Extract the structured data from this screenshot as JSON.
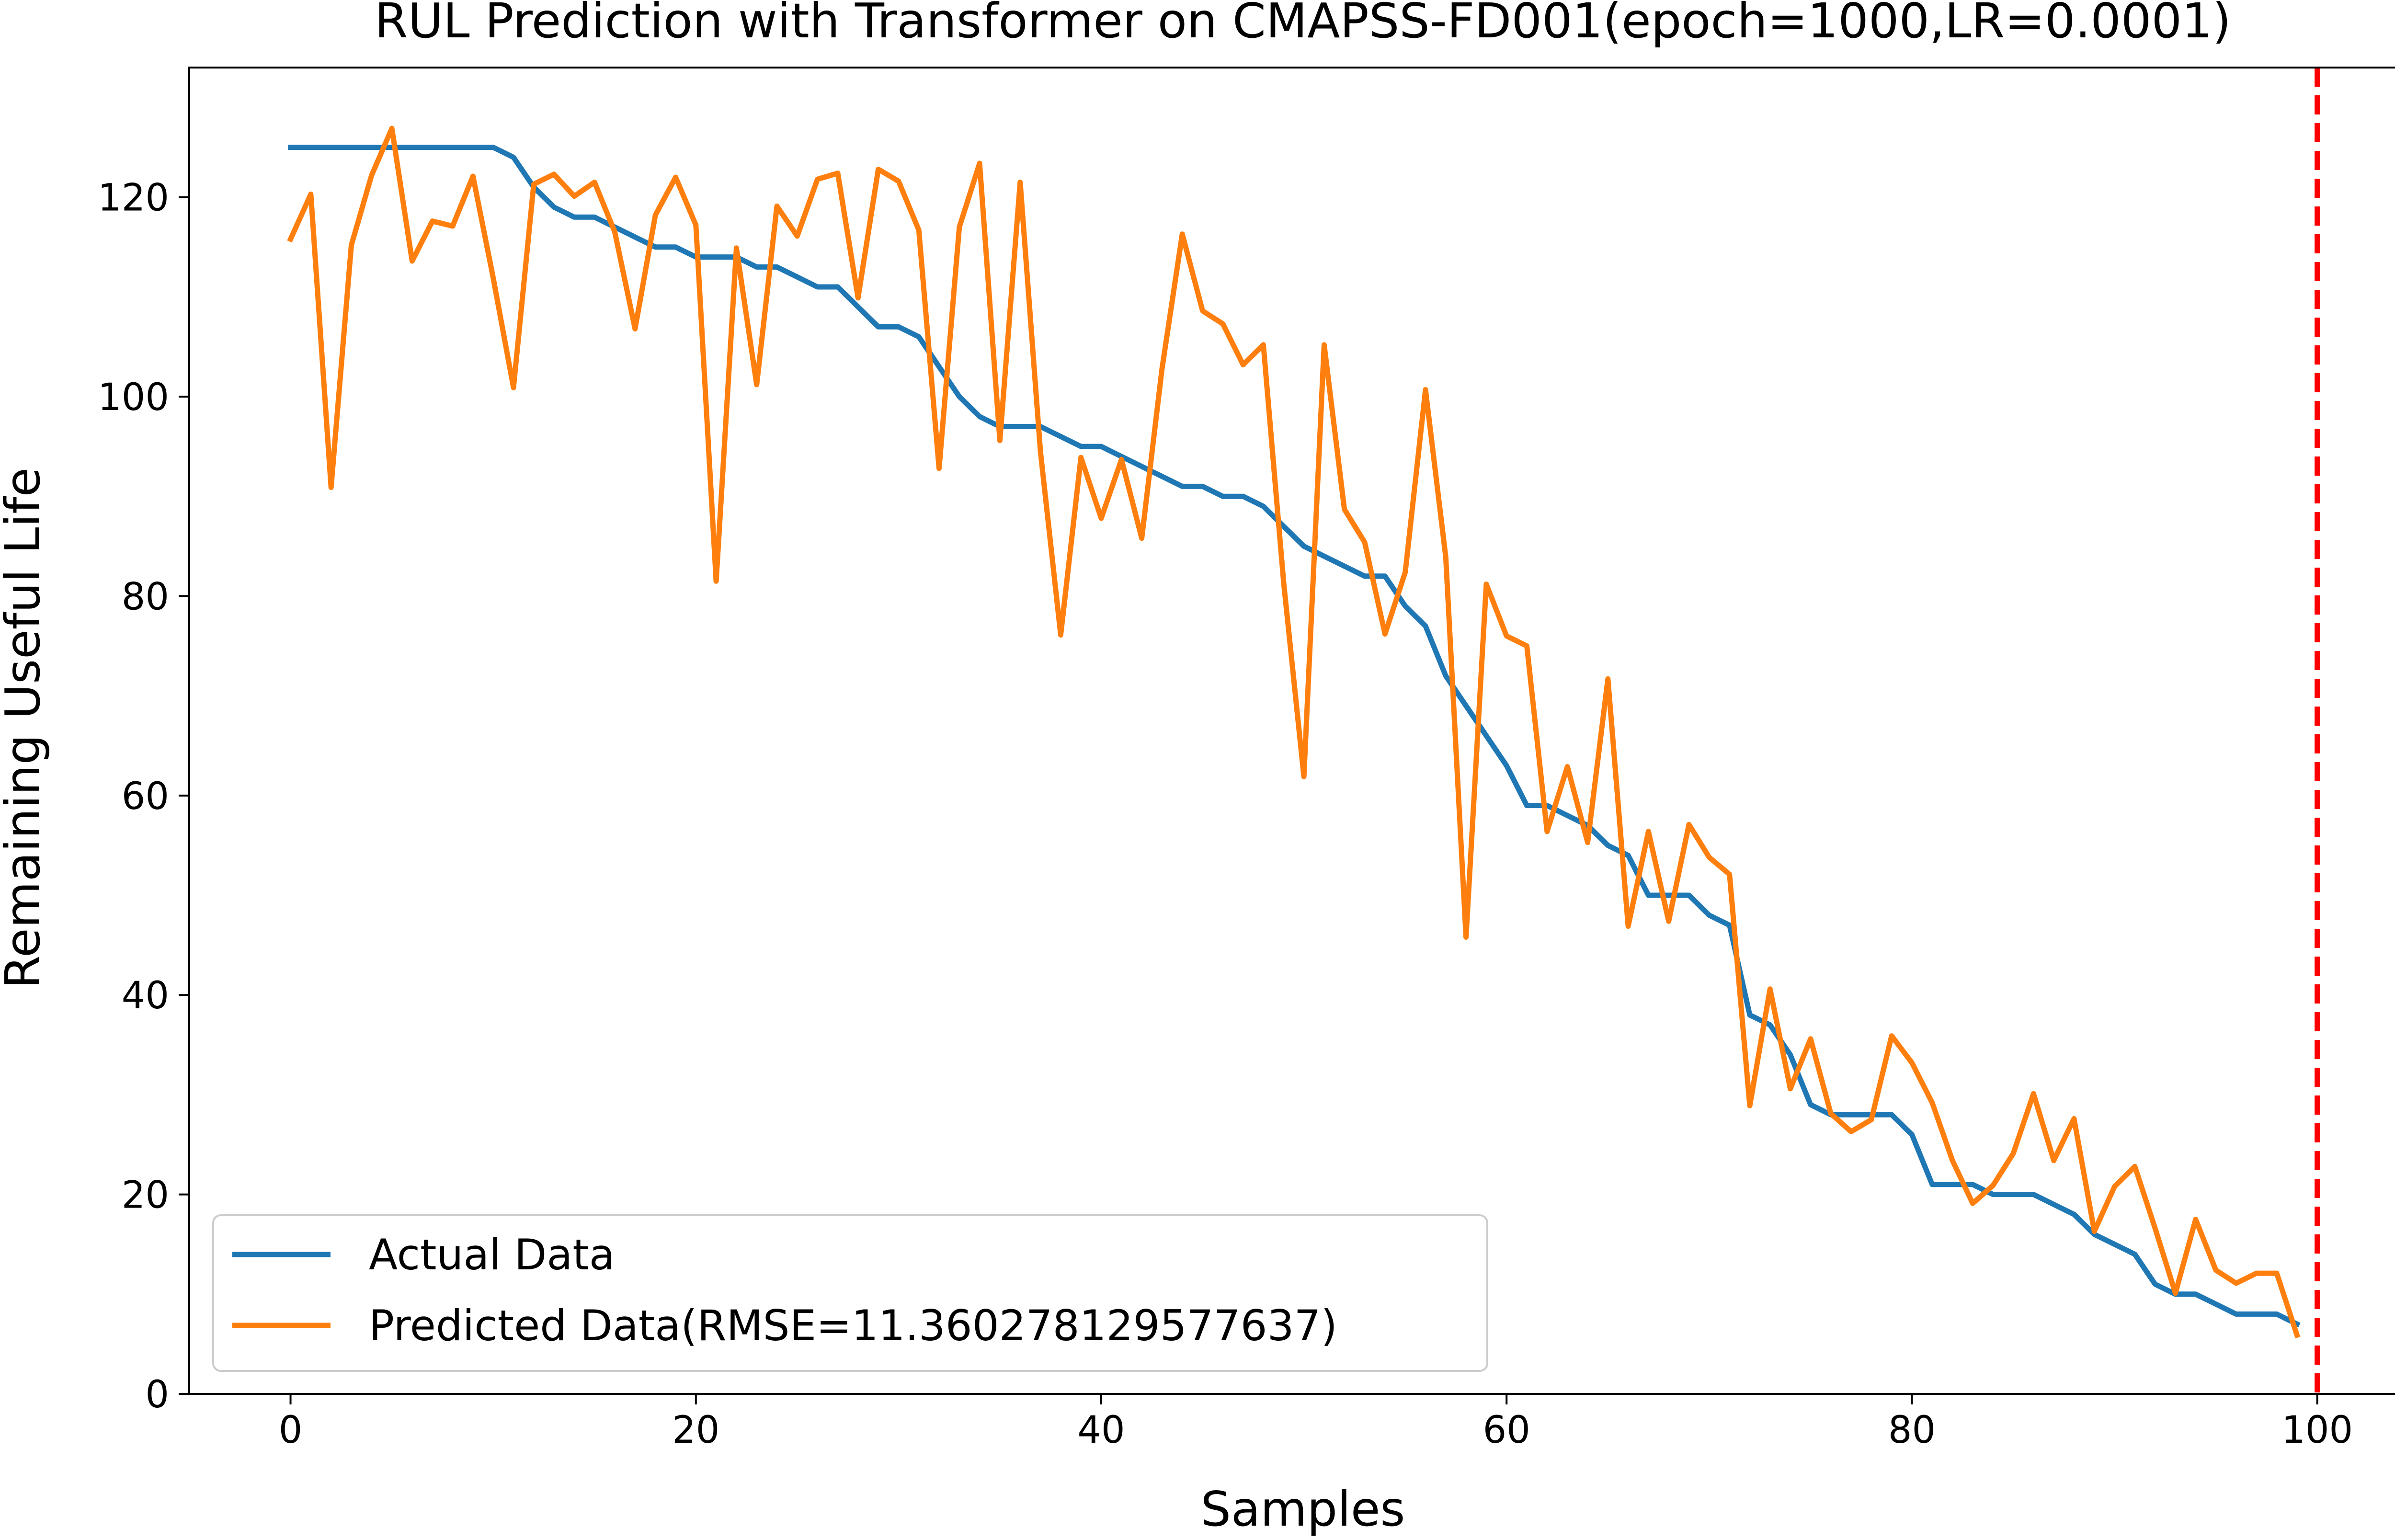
{
  "chart_data": {
    "type": "line",
    "title": "RUL Prediction with Transformer on CMAPSS-FD001(epoch=1000,LR=0.0001)",
    "xlabel": "Samples",
    "ylabel": "Remaining Useful Life",
    "xlim": [
      -5,
      104.9
    ],
    "ylim": [
      0,
      133
    ],
    "xticks": [
      0,
      20,
      40,
      60,
      80,
      100
    ],
    "yticks": [
      0,
      20,
      40,
      60,
      80,
      100,
      120
    ],
    "grid": false,
    "legend_position": "lower-left",
    "series": [
      {
        "name": "Actual Data",
        "color": "#1f77b4",
        "x": [
          0,
          1,
          2,
          3,
          4,
          5,
          6,
          7,
          8,
          9,
          10,
          11,
          12,
          13,
          14,
          15,
          16,
          17,
          18,
          19,
          20,
          21,
          22,
          23,
          24,
          25,
          26,
          27,
          28,
          29,
          30,
          31,
          32,
          33,
          34,
          35,
          36,
          37,
          38,
          39,
          40,
          41,
          42,
          43,
          44,
          45,
          46,
          47,
          48,
          49,
          50,
          51,
          52,
          53,
          54,
          55,
          56,
          57,
          58,
          59,
          60,
          61,
          62,
          63,
          64,
          65,
          66,
          67,
          68,
          69,
          70,
          71,
          72,
          73,
          74,
          75,
          76,
          77,
          78,
          79,
          80,
          81,
          82,
          83,
          84,
          85,
          86,
          87,
          88,
          89,
          90,
          91,
          92,
          93,
          94,
          95,
          96,
          97,
          98,
          99
        ],
        "values": [
          125,
          125,
          125,
          125,
          125,
          125,
          125,
          125,
          125,
          125,
          125,
          124,
          121,
          119,
          118,
          118,
          117,
          116,
          115,
          115,
          114,
          114,
          114,
          113,
          113,
          112,
          111,
          111,
          109,
          107,
          107,
          106,
          103,
          100,
          98,
          97,
          97,
          97,
          96,
          95,
          95,
          94,
          93,
          92,
          91,
          91,
          90,
          90,
          89,
          87,
          85,
          84,
          83,
          82,
          82,
          79,
          77,
          72,
          69,
          66,
          63,
          59,
          59,
          58,
          57,
          55,
          54,
          50,
          50,
          50,
          48,
          47,
          38,
          37,
          34,
          29,
          28,
          28,
          28,
          28,
          26,
          21,
          21,
          21,
          20,
          20,
          20,
          19,
          18,
          16,
          15,
          14,
          11,
          10,
          10,
          9,
          8,
          8,
          8,
          7
        ]
      },
      {
        "name": "Predicted Data(RMSE=11.360278129577637)",
        "color": "#ff7f0e",
        "x": [
          0,
          1,
          2,
          3,
          4,
          5,
          6,
          7,
          8,
          9,
          10,
          11,
          12,
          13,
          14,
          15,
          16,
          17,
          18,
          19,
          20,
          21,
          22,
          23,
          24,
          25,
          26,
          27,
          28,
          29,
          30,
          31,
          32,
          33,
          34,
          35,
          36,
          37,
          38,
          39,
          40,
          41,
          42,
          43,
          44,
          45,
          46,
          47,
          48,
          49,
          50,
          51,
          52,
          53,
          54,
          55,
          56,
          57,
          58,
          59,
          60,
          61,
          62,
          63,
          64,
          65,
          66,
          67,
          68,
          69,
          70,
          71,
          72,
          73,
          74,
          75,
          76,
          77,
          78,
          79,
          80,
          81,
          82,
          83,
          84,
          85,
          86,
          87,
          88,
          89,
          90,
          91,
          92,
          93,
          94,
          95,
          96,
          97,
          98,
          99
        ],
        "values": [
          115.8,
          120.3,
          90.9,
          115.2,
          122.2,
          126.9,
          113.6,
          117.6,
          117.1,
          122.1,
          111.9,
          100.9,
          121.3,
          122.3,
          120.1,
          121.5,
          116.5,
          106.8,
          118.2,
          122.0,
          117.2,
          81.5,
          114.9,
          101.2,
          119.1,
          116.1,
          121.8,
          122.4,
          109.9,
          122.8,
          121.6,
          116.7,
          92.8,
          117.0,
          123.4,
          95.6,
          121.5,
          94.5,
          76.1,
          93.9,
          87.8,
          93.7,
          85.8,
          102.8,
          116.3,
          108.6,
          107.3,
          103.2,
          105.2,
          81.4,
          61.9,
          105.2,
          88.7,
          85.4,
          76.2,
          82.4,
          100.7,
          83.9,
          45.8,
          81.2,
          76.0,
          75.0,
          56.4,
          62.9,
          55.3,
          71.7,
          46.9,
          56.4,
          47.4,
          57.1,
          53.8,
          52.1,
          28.9,
          40.6,
          30.6,
          35.6,
          28.1,
          26.3,
          27.5,
          35.9,
          33.2,
          29.2,
          23.4,
          19.1,
          20.9,
          24.1,
          30.1,
          23.4,
          27.6,
          16.3,
          20.8,
          22.8,
          16.6,
          10.1,
          17.5,
          12.4,
          11.1,
          12.1,
          12.1,
          5.9
        ]
      }
    ],
    "annotations": [
      {
        "type": "vertical-line",
        "x": 100,
        "color": "#ff0000",
        "style": "dashed"
      }
    ]
  }
}
